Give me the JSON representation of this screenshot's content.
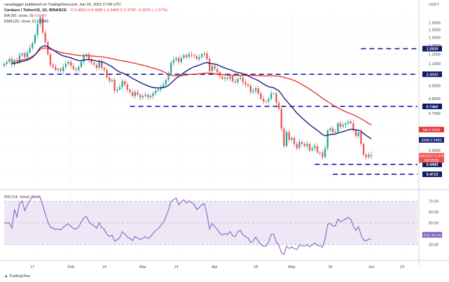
{
  "header": {
    "publisher": "ranadagger published on TradingView.com, Jun 15, 2022 17:06 UTC",
    "symbol_line": "Cardano / TetherUS, 1D, BINANCE",
    "ohlc": "O 0.4831  H 0.4980  L 0.4483  C 0.4755  −0.0076 (−1.57%)",
    "ma_line_label": "MA (50, close, 0)",
    "ma_line_value": "0.6040",
    "ema_line_label": "EMA (20, close, 0)",
    "ema_line_value": "0.5499",
    "rsi_label": "RSI (14, close)",
    "rsi_value": "39.04",
    "currency": "USDT"
  },
  "footer": {
    "brand": "TradingView"
  },
  "colors": {
    "up": "#26a69a",
    "down": "#ef5350",
    "ma": "#e53935",
    "ema": "#1a237e",
    "rsi": "#7e57c2",
    "level": "#1a1aa8",
    "rsi_band": "#ede7f6"
  },
  "chart_data": [
    {
      "type": "candlestick",
      "title": "Cardano / TetherUS, 1D, BINANCE",
      "y_scale": "log",
      "ylim": [
        0.37,
        1.8
      ],
      "price_ticks": [
        "1.6000",
        "1.5000",
        "1.4000",
        "1.3000",
        "1.2000",
        "1.1000",
        "1.0000",
        "0.9000",
        "0.8000",
        "0.7000",
        "0.6000",
        "0.5000",
        "0.4000"
      ],
      "x_ticks": [
        {
          "day": 0,
          "label": "17"
        },
        {
          "day": 15,
          "label": "Feb"
        },
        {
          "day": 28,
          "label": "14"
        },
        {
          "day": 43,
          "label": "Mar"
        },
        {
          "day": 56,
          "label": "14"
        },
        {
          "day": 71,
          "label": "Apr"
        },
        {
          "day": 87,
          "label": "18"
        },
        {
          "day": 101,
          "label": "May"
        },
        {
          "day": 116,
          "label": "16"
        },
        {
          "day": 132,
          "label": "Jun"
        },
        {
          "day": 144,
          "label": "13"
        }
      ],
      "horizontal_levels": [
        {
          "value": 1.263,
          "label": "1.2630",
          "from_day": 128
        },
        {
          "value": 1.0,
          "label": "1.0000",
          "from_day": -10
        },
        {
          "value": 0.746,
          "label": "0.7460",
          "from_day": 38
        },
        {
          "value": 0.44,
          "label": "0.4400",
          "from_day": 110
        },
        {
          "value": 0.4019,
          "label": "0.4019",
          "from_day": 117
        }
      ],
      "price_labels": [
        {
          "text": "MA",
          "value": "0.6040",
          "price": 0.604,
          "color": "#e53935"
        },
        {
          "text": "EMA",
          "value": "0.5499",
          "price": 0.5499,
          "color": "#1a237e"
        },
        {
          "text": "ADAUSDT",
          "value": "0.4755",
          "price": 0.4755,
          "color": "#ef5350"
        },
        {
          "text": "",
          "value": "09:53:55",
          "price": 0.458,
          "color": "#ef5350"
        }
      ],
      "series": [
        {
          "name": "ADAUSDT",
          "start_day": -11,
          "closes": [
            1.1,
            1.12,
            1.15,
            1.09,
            1.14,
            1.12,
            1.19,
            1.21,
            1.17,
            1.22,
            1.27,
            1.33,
            1.43,
            1.58,
            1.68,
            1.46,
            1.34,
            1.2,
            1.09,
            1.07,
            1.04,
            1.05,
            1.03,
            1.07,
            1.1,
            1.12,
            1.08,
            1.05,
            1.04,
            1.07,
            1.12,
            1.18,
            1.2,
            1.14,
            1.11,
            1.09,
            1.06,
            1.12,
            1.06,
            1.04,
            0.97,
            0.94,
            0.95,
            0.86,
            0.87,
            0.89,
            0.94,
            0.91,
            0.87,
            0.85,
            0.82,
            0.85,
            0.83,
            0.81,
            0.82,
            0.83,
            0.81,
            0.82,
            0.84,
            0.86,
            0.87,
            0.89,
            0.91,
            0.95,
            1.01,
            1.11,
            1.14,
            1.16,
            1.12,
            1.16,
            1.19,
            1.17,
            1.2,
            1.19,
            1.18,
            1.15,
            1.17,
            1.2,
            1.21,
            1.15,
            1.03,
            1.08,
            1.05,
            1.02,
            0.98,
            0.96,
            0.97,
            0.96,
            0.98,
            0.94,
            0.93,
            0.96,
            0.97,
            0.93,
            0.91,
            0.9,
            0.85,
            0.86,
            0.88,
            0.84,
            0.8,
            0.78,
            0.78,
            0.8,
            0.84,
            0.84,
            0.77,
            0.73,
            0.61,
            0.52,
            0.59,
            0.55,
            0.56,
            0.53,
            0.51,
            0.54,
            0.53,
            0.52,
            0.53,
            0.5,
            0.51,
            0.52,
            0.49,
            0.49,
            0.47,
            0.51,
            0.6,
            0.61,
            0.59,
            0.59,
            0.64,
            0.62,
            0.63,
            0.64,
            0.65,
            0.64,
            0.6,
            0.57,
            0.59,
            0.53,
            0.48,
            0.47,
            0.48,
            0.4755
          ]
        },
        {
          "name": "RSI",
          "ylim": [
            20,
            75
          ],
          "ticks": [
            "70.00",
            "60.00",
            "50.00",
            "40.00",
            "30.00"
          ],
          "band": [
            30,
            70
          ]
        }
      ]
    }
  ]
}
